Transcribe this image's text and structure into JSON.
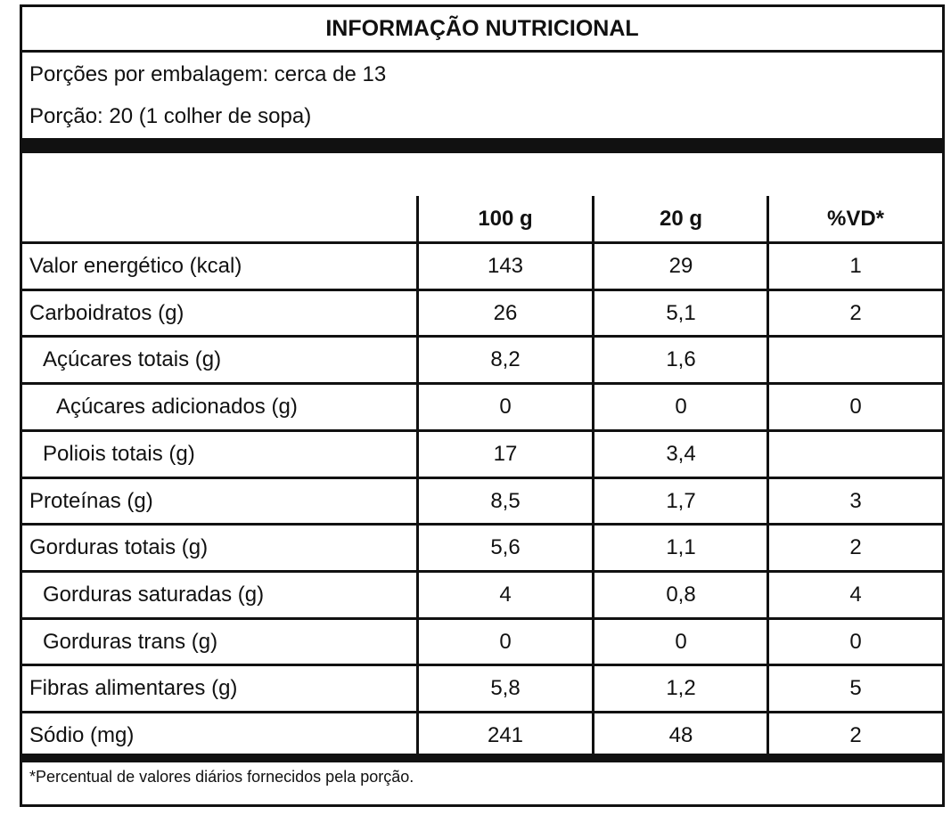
{
  "header": {
    "title": "INFORMAÇÃO NUTRICIONAL",
    "servings": "Porções por embalagem: cerca de 13",
    "portion": "Porção: 20 (1 colher de sopa)"
  },
  "table": {
    "columns": [
      "100 g",
      "20 g",
      "%VD*"
    ],
    "rows": [
      [
        "Valor energético (kcal)",
        "143",
        "29",
        "1"
      ],
      [
        "Carboidratos (g)",
        "26",
        "5,1",
        "2"
      ],
      [
        "Açúcares totais (g)",
        "8,2",
        "1,6",
        null
      ],
      [
        "Açúcares adicionados (g)",
        "0",
        "0",
        "0"
      ],
      [
        "Poliois totais (g)",
        "17",
        "3,4",
        null
      ],
      [
        "Proteínas (g)",
        "8,5",
        "1,7",
        "3"
      ],
      [
        "Gorduras totais (g)",
        "5,6",
        "1,1",
        "2"
      ],
      [
        "Gorduras saturadas (g)",
        "4",
        "0,8",
        "4"
      ],
      [
        "Gorduras trans (g)",
        "0",
        "0",
        "0"
      ],
      [
        "Fibras alimentares (g)",
        "5,8",
        "1,2",
        "5"
      ],
      [
        "Sódio (mg)",
        "241",
        "48",
        "2"
      ]
    ]
  },
  "footnote": "*Percentual de valores diários fornecidos pela porção."
}
